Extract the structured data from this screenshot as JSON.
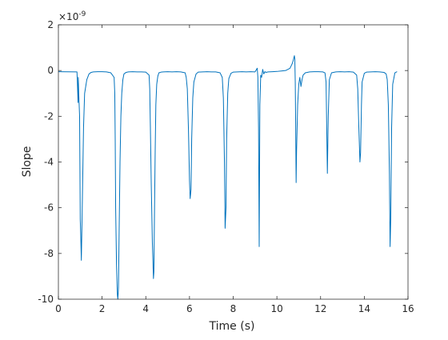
{
  "chart_data": {
    "type": "line",
    "title": "",
    "xlabel": "Time (s)",
    "ylabel": "Slope",
    "xlim": [
      0,
      16
    ],
    "ylim": [
      -10,
      2
    ],
    "y_exponent_label": "×10",
    "y_exponent_power": "-9",
    "y_scale_factor": 1e-09,
    "x_ticks": [
      0,
      2,
      4,
      6,
      8,
      10,
      12,
      14,
      16
    ],
    "y_ticks": [
      -10,
      -8,
      -6,
      -4,
      -2,
      0,
      2
    ],
    "grid": false,
    "line_color": "#0072BD",
    "series": [
      {
        "x": [
          0.0,
          0.85,
          0.86,
          0.9,
          0.91,
          0.93,
          0.97,
          1.0,
          1.02,
          1.05,
          1.1,
          1.15,
          1.2,
          1.3,
          1.4,
          1.5,
          1.6,
          1.8,
          2.0,
          2.2,
          2.4,
          2.55,
          2.58,
          2.6,
          2.62,
          2.66,
          2.7,
          2.72,
          2.75,
          2.78,
          2.82,
          2.86,
          2.9,
          2.95,
          3.0,
          3.1,
          3.2,
          3.4,
          3.6,
          3.8,
          4.0,
          4.15,
          4.18,
          4.21,
          4.25,
          4.3,
          4.35,
          4.37,
          4.4,
          4.43,
          4.46,
          4.5,
          4.55,
          4.6,
          4.7,
          4.8,
          5.0,
          5.2,
          5.4,
          5.6,
          5.8,
          5.85,
          5.9,
          5.95,
          6.0,
          6.03,
          6.07,
          6.1,
          6.15,
          6.2,
          6.3,
          6.4,
          6.6,
          6.8,
          7.0,
          7.2,
          7.4,
          7.5,
          7.55,
          7.6,
          7.63,
          7.67,
          7.7,
          7.75,
          7.8,
          7.9,
          8.0,
          8.2,
          8.4,
          8.6,
          8.8,
          9.0,
          9.1,
          9.13,
          9.16,
          9.19,
          9.22,
          9.26,
          9.3,
          9.35,
          9.4,
          9.45,
          9.5,
          9.6,
          9.8,
          10.0,
          10.2,
          10.4,
          10.6,
          10.7,
          10.75,
          10.8,
          10.82,
          10.84,
          10.86,
          10.88,
          10.9,
          10.95,
          11.0,
          11.05,
          11.1,
          11.15,
          11.2,
          11.3,
          11.5,
          11.7,
          11.9,
          12.1,
          12.2,
          12.25,
          12.28,
          12.31,
          12.35,
          12.4,
          12.5,
          12.7,
          12.9,
          13.1,
          13.3,
          13.5,
          13.65,
          13.7,
          13.75,
          13.8,
          13.83,
          13.87,
          13.9,
          14.0,
          14.1,
          14.3,
          14.5,
          14.7,
          14.9,
          15.0,
          15.05,
          15.1,
          15.15,
          15.18,
          15.21,
          15.25,
          15.3,
          15.4,
          15.5
        ],
        "y": [
          -0.05,
          -0.06,
          -0.3,
          -1.4,
          -0.3,
          -1.0,
          -2.0,
          -6.5,
          -7.1,
          -8.3,
          -5.5,
          -2.5,
          -1.0,
          -0.4,
          -0.15,
          -0.08,
          -0.06,
          -0.05,
          -0.05,
          -0.06,
          -0.1,
          -0.3,
          -1.0,
          -3.0,
          -6.0,
          -8.5,
          -9.8,
          -10.0,
          -9.5,
          -7.0,
          -4.0,
          -2.0,
          -1.0,
          -0.4,
          -0.15,
          -0.08,
          -0.06,
          -0.05,
          -0.06,
          -0.06,
          -0.07,
          -0.2,
          -0.8,
          -2.5,
          -5.0,
          -7.5,
          -9.1,
          -8.8,
          -6.0,
          -3.5,
          -1.5,
          -0.6,
          -0.25,
          -0.1,
          -0.07,
          -0.06,
          -0.05,
          -0.06,
          -0.05,
          -0.06,
          -0.1,
          -0.3,
          -0.8,
          -2.5,
          -4.8,
          -5.6,
          -5.2,
          -3.0,
          -1.2,
          -0.5,
          -0.15,
          -0.07,
          -0.06,
          -0.05,
          -0.06,
          -0.06,
          -0.1,
          -0.3,
          -1.2,
          -4.0,
          -6.9,
          -6.0,
          -3.0,
          -1.0,
          -0.35,
          -0.12,
          -0.07,
          -0.06,
          -0.05,
          -0.06,
          -0.05,
          -0.06,
          0.1,
          -0.3,
          -2.5,
          -7.7,
          -1.5,
          -0.2,
          -0.3,
          0.05,
          -0.15,
          -0.05,
          -0.08,
          -0.06,
          -0.05,
          -0.04,
          -0.02,
          0.0,
          0.1,
          0.3,
          0.45,
          0.65,
          0.5,
          -0.5,
          -2.5,
          -4.9,
          -3.5,
          -1.5,
          -0.6,
          -0.3,
          -0.7,
          -0.4,
          -0.2,
          -0.1,
          -0.06,
          -0.05,
          -0.05,
          -0.06,
          -0.1,
          -0.5,
          -2.5,
          -4.5,
          -2.0,
          -0.4,
          -0.1,
          -0.06,
          -0.05,
          -0.06,
          -0.05,
          -0.07,
          -0.2,
          -0.8,
          -2.5,
          -4.0,
          -3.6,
          -1.5,
          -0.5,
          -0.12,
          -0.07,
          -0.06,
          -0.05,
          -0.06,
          -0.08,
          -0.15,
          -0.4,
          -1.5,
          -4.5,
          -7.7,
          -6.5,
          -2.5,
          -0.6,
          -0.1,
          -0.05
        ]
      }
    ]
  }
}
